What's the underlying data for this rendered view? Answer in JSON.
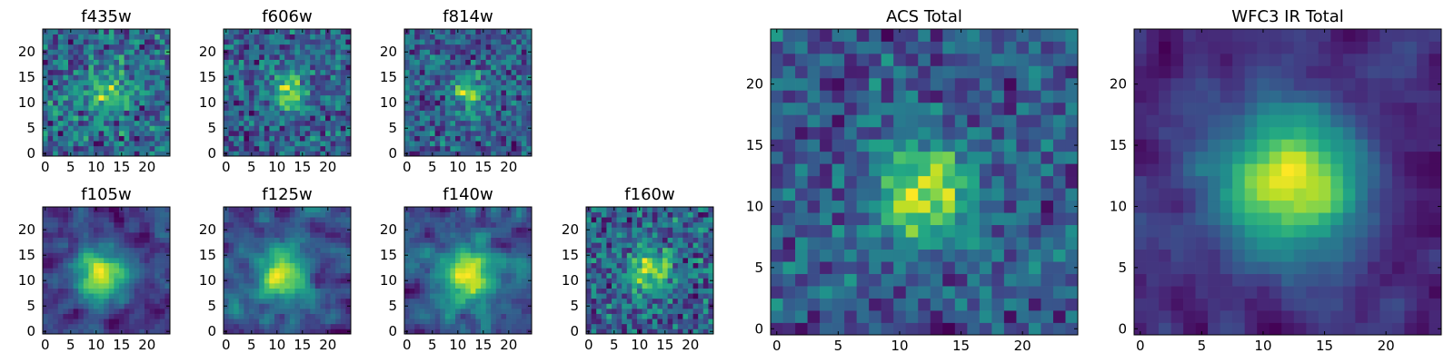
{
  "chart_data": [
    {
      "type": "heatmap",
      "title": "f435w",
      "xticks": [
        "0",
        "5",
        "10",
        "15",
        "20"
      ],
      "yticks": [
        "0",
        "5",
        "10",
        "15",
        "20"
      ],
      "xlim": [
        -0.5,
        24.5
      ],
      "ylim": [
        -0.5,
        24.5
      ],
      "grid_size": 25,
      "seed": 11,
      "blob_center": [
        12,
        12
      ],
      "blob_sigma": 3.0,
      "blob_strength": 0.35,
      "noise": 0.45,
      "colormap": "viridis"
    },
    {
      "type": "heatmap",
      "title": "f606w",
      "xticks": [
        "0",
        "5",
        "10",
        "15",
        "20"
      ],
      "yticks": [
        "0",
        "5",
        "10",
        "15",
        "20"
      ],
      "xlim": [
        -0.5,
        24.5
      ],
      "ylim": [
        -0.5,
        24.5
      ],
      "grid_size": 25,
      "seed": 23,
      "blob_center": [
        12,
        12
      ],
      "blob_sigma": 2.5,
      "blob_strength": 0.45,
      "noise": 0.4,
      "colormap": "viridis"
    },
    {
      "type": "heatmap",
      "title": "f814w",
      "xticks": [
        "0",
        "5",
        "10",
        "15",
        "20"
      ],
      "yticks": [
        "0",
        "5",
        "10",
        "15",
        "20"
      ],
      "xlim": [
        -0.5,
        24.5
      ],
      "ylim": [
        -0.5,
        24.5
      ],
      "grid_size": 25,
      "seed": 37,
      "blob_center": [
        12,
        12
      ],
      "blob_sigma": 2.5,
      "blob_strength": 0.45,
      "noise": 0.4,
      "colormap": "viridis"
    },
    {
      "type": "heatmap",
      "title": "f105w",
      "xticks": [
        "0",
        "5",
        "10",
        "15",
        "20"
      ],
      "yticks": [
        "0",
        "5",
        "10",
        "15",
        "20"
      ],
      "xlim": [
        -0.5,
        24.5
      ],
      "ylim": [
        -0.5,
        24.5
      ],
      "grid_size": 25,
      "seed": 41,
      "blob_center": [
        11,
        11
      ],
      "blob_sigma": 3.5,
      "blob_strength": 0.45,
      "noise": 0.35,
      "colormap": "viridis"
    },
    {
      "type": "heatmap",
      "title": "f125w",
      "xticks": [
        "0",
        "5",
        "10",
        "15",
        "20"
      ],
      "yticks": [
        "0",
        "5",
        "10",
        "15",
        "20"
      ],
      "xlim": [
        -0.5,
        24.5
      ],
      "ylim": [
        -0.5,
        24.5
      ],
      "grid_size": 25,
      "seed": 53,
      "blob_center": [
        11,
        11
      ],
      "blob_sigma": 3.5,
      "blob_strength": 0.4,
      "noise": 0.4,
      "colormap": "viridis"
    },
    {
      "type": "heatmap",
      "title": "f140w",
      "xticks": [
        "0",
        "5",
        "10",
        "15",
        "20"
      ],
      "yticks": [
        "0",
        "5",
        "10",
        "15",
        "20"
      ],
      "xlim": [
        -0.5,
        24.5
      ],
      "ylim": [
        -0.5,
        24.5
      ],
      "grid_size": 25,
      "seed": 67,
      "blob_center": [
        12,
        11
      ],
      "blob_sigma": 3.5,
      "blob_strength": 0.45,
      "noise": 0.4,
      "colormap": "viridis"
    },
    {
      "type": "heatmap",
      "title": "f160w",
      "xticks": [
        "0",
        "5",
        "10",
        "15",
        "20"
      ],
      "yticks": [
        "0",
        "5",
        "10",
        "15",
        "20"
      ],
      "xlim": [
        -0.5,
        24.5
      ],
      "ylim": [
        -0.5,
        24.5
      ],
      "grid_size": 25,
      "seed": 79,
      "blob_center": [
        12,
        12
      ],
      "blob_sigma": 3.0,
      "blob_strength": 0.5,
      "noise": 0.4,
      "colormap": "viridis"
    },
    {
      "type": "heatmap",
      "title": "ACS Total",
      "xticks": [
        "0",
        "5",
        "10",
        "15",
        "20"
      ],
      "yticks": [
        "0",
        "5",
        "10",
        "15",
        "20"
      ],
      "xlim": [
        -0.5,
        24.5
      ],
      "ylim": [
        -0.5,
        24.5
      ],
      "grid_size": 25,
      "seed": 97,
      "blob_center": [
        12,
        11
      ],
      "blob_sigma": 2.8,
      "blob_strength": 0.55,
      "noise": 0.3,
      "colormap": "viridis"
    },
    {
      "type": "heatmap",
      "title": "WFC3 IR Total",
      "xticks": [
        "0",
        "5",
        "10",
        "15",
        "20"
      ],
      "yticks": [
        "0",
        "5",
        "10",
        "15",
        "20"
      ],
      "xlim": [
        -0.5,
        24.5
      ],
      "ylim": [
        -0.5,
        24.5
      ],
      "grid_size": 25,
      "seed": 131,
      "blob_center": [
        12,
        12
      ],
      "blob_sigma": 4.0,
      "blob_strength": 0.55,
      "noise": 0.25,
      "colormap": "viridis"
    }
  ]
}
